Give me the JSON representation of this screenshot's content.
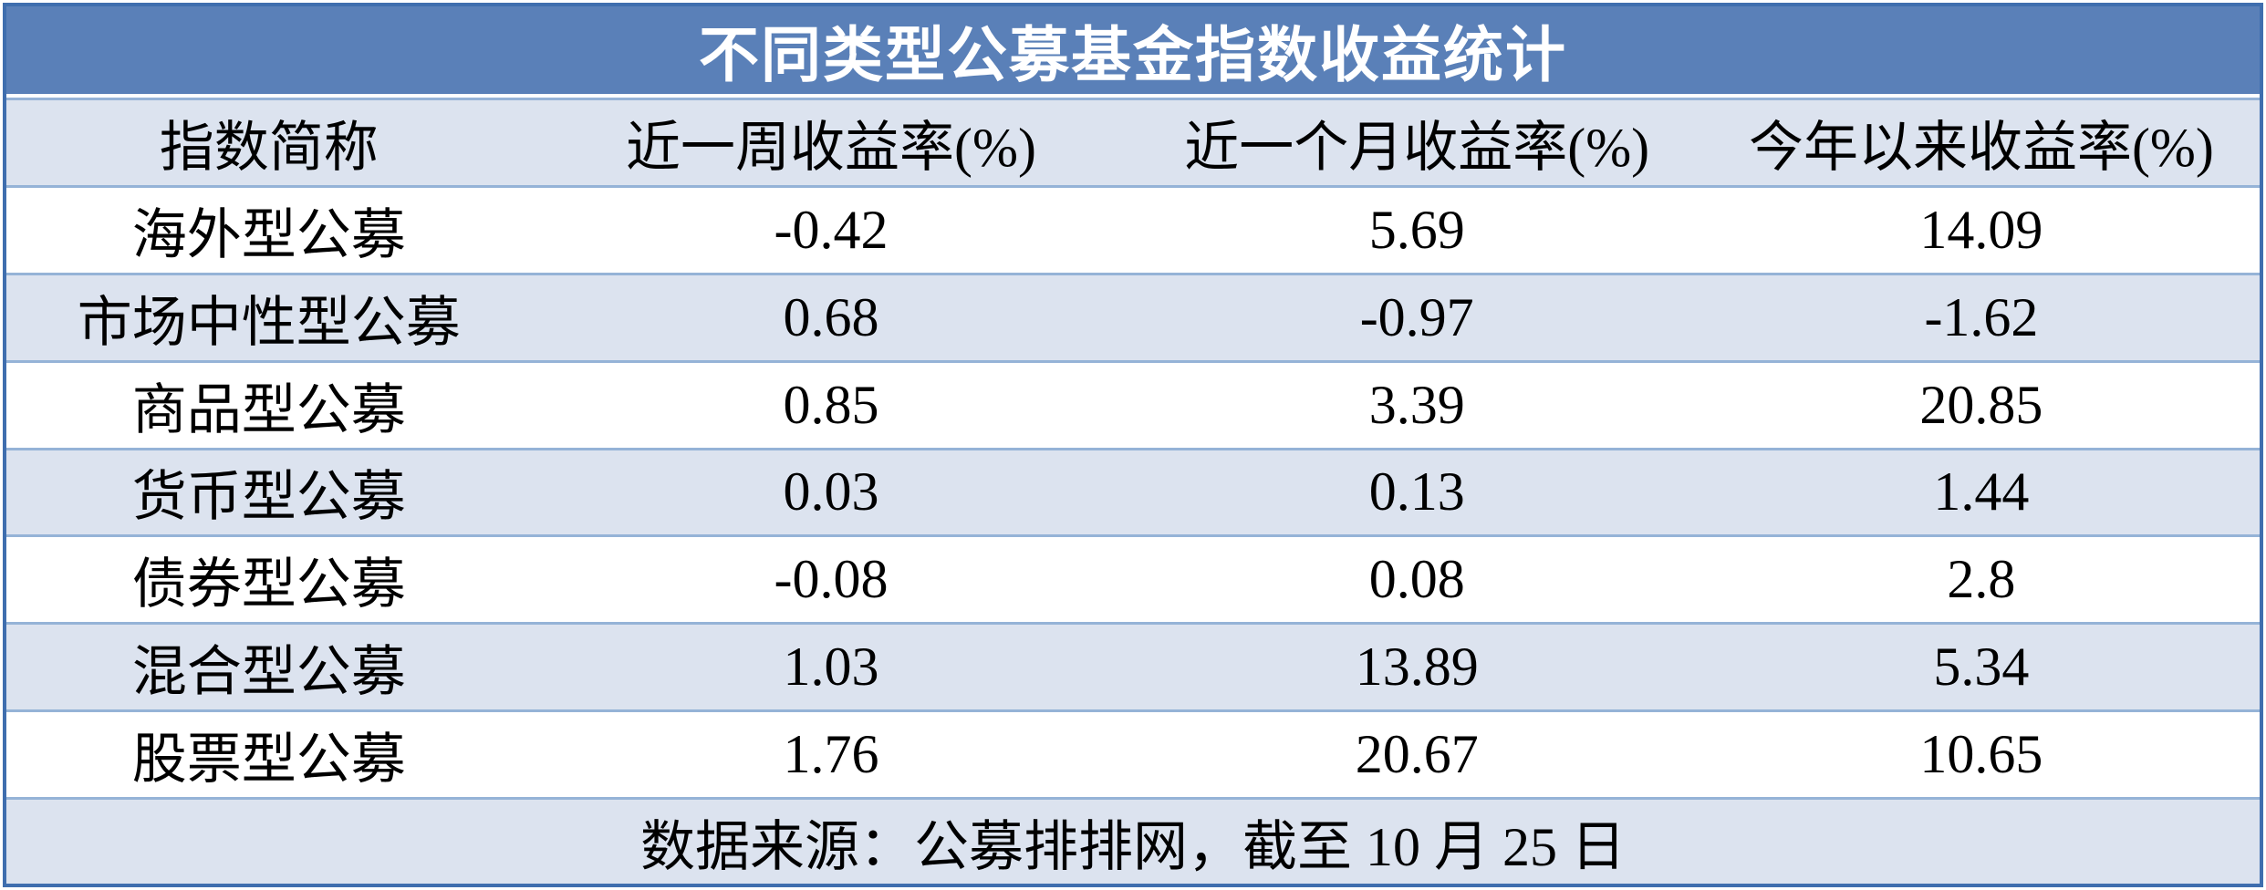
{
  "chart_data": {
    "type": "table",
    "title": "不同类型公募基金指数收益统计",
    "columns": [
      "指数简称",
      "近一周收益率(%)",
      "近一个月收益率(%)",
      "今年以来收益率(%)"
    ],
    "rows": [
      [
        "海外型公募",
        "-0.42",
        "5.69",
        "14.09"
      ],
      [
        "市场中性型公募",
        "0.68",
        "-0.97",
        "-1.62"
      ],
      [
        "商品型公募",
        "0.85",
        "3.39",
        "20.85"
      ],
      [
        "货币型公募",
        "0.03",
        "0.13",
        "1.44"
      ],
      [
        "债券型公募",
        "-0.08",
        "0.08",
        "2.8"
      ],
      [
        "混合型公募",
        "1.03",
        "13.89",
        "5.34"
      ],
      [
        "股票型公募",
        "1.76",
        "20.67",
        "10.65"
      ]
    ],
    "footer": "数据来源：公募排排网，截至 10 月 25 日",
    "layout_hints": {
      "zebra_striping": "white and light-blue alternating rows",
      "gridlines": "horizontal only"
    }
  },
  "colors": {
    "title_bar_bg": "#5a80b8",
    "title_text": "#ffffff",
    "band_row_bg": "#dce3ef",
    "white_row_bg": "#ffffff",
    "separator_line": "#95b3d7",
    "outer_border": "#3f6eae",
    "body_text": "#000000"
  }
}
